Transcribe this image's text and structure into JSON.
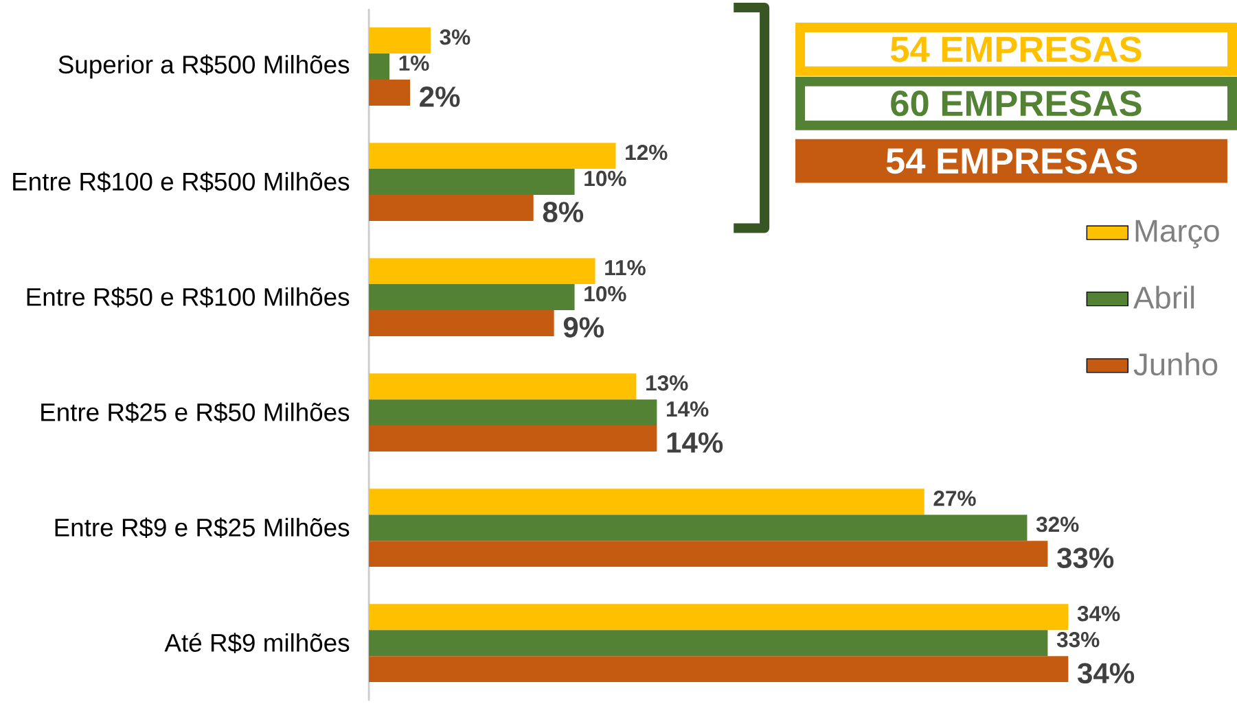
{
  "chart_data": {
    "type": "bar",
    "orientation": "horizontal",
    "categories": [
      "Superior a R$500 Milhões",
      "Entre R$100 e R$500 Milhões",
      "Entre R$50 e R$100 Milhões",
      "Entre R$25 e R$50 Milhões",
      "Entre R$9 e R$25 Milhões",
      "Até R$9 milhões"
    ],
    "series": [
      {
        "name": "Março",
        "color": "#ffc000",
        "values": [
          3,
          12,
          11,
          13,
          27,
          34
        ],
        "value_labels": [
          "3%",
          "12%",
          "11%",
          "13%",
          "27%",
          "34%"
        ]
      },
      {
        "name": "Abril",
        "color": "#548235",
        "values": [
          1,
          10,
          10,
          14,
          32,
          33
        ],
        "value_labels": [
          "1%",
          "10%",
          "10%",
          "14%",
          "32%",
          "33%"
        ]
      },
      {
        "name": "Junho",
        "color": "#c55a11",
        "values": [
          2,
          8,
          9,
          14,
          33,
          34
        ],
        "value_labels": [
          "2%",
          "8%",
          "9%",
          "14%",
          "33%",
          "34%"
        ]
      }
    ],
    "xlim": [
      0,
      42
    ],
    "legend": "right",
    "tick_labels": "y",
    "annotations": [
      "54 EMPRESAS",
      "60 EMPRESAS",
      "54 EMPRESAS"
    ]
  }
}
